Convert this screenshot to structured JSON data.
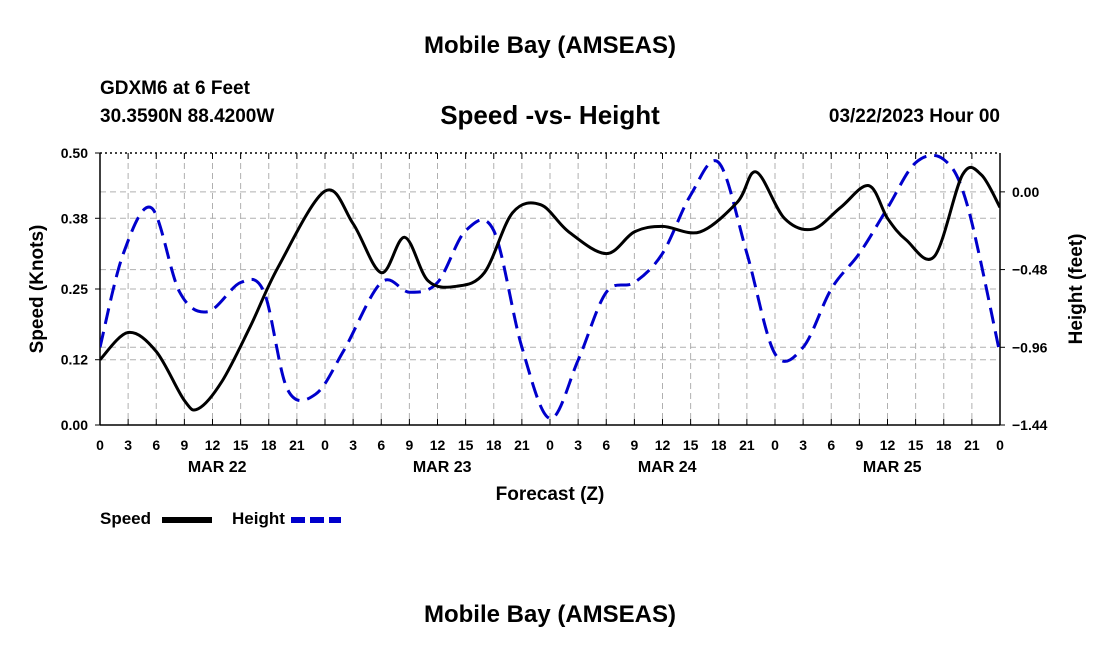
{
  "header": {
    "title": "Mobile Bay (AMSEAS)",
    "station_line": "GDXM6 at 6 Feet",
    "coords_line": "30.3590N  88.4200W",
    "subtitle": "Speed -vs- Height",
    "datetime": "03/22/2023 Hour 00"
  },
  "footer": {
    "title": "Mobile Bay (AMSEAS)"
  },
  "chart_data": {
    "type": "line",
    "title": "Speed -vs- Height",
    "xlabel": "Forecast (Z)",
    "ylabel_left": "Speed (Knots)",
    "ylabel_right": "Height (feet)",
    "xlim_hours": [
      0,
      96
    ],
    "ylim_left": [
      0,
      0.5
    ],
    "ylim_right": [
      -1.44,
      0.24
    ],
    "left_ticks": [
      "0.00",
      "0.12",
      "0.25",
      "0.38",
      "0.50"
    ],
    "right_ticks": [
      "-1.44",
      "-0.96",
      "-0.48",
      "0.00"
    ],
    "x_tick_labels": [
      "0",
      "3",
      "6",
      "9",
      "12",
      "15",
      "18",
      "21",
      "0",
      "3",
      "6",
      "9",
      "12",
      "15",
      "18",
      "21",
      "0",
      "3",
      "6",
      "9",
      "12",
      "15",
      "18",
      "21",
      "0",
      "3",
      "6",
      "9",
      "12",
      "15",
      "18",
      "21",
      "0"
    ],
    "day_labels": [
      "MAR 22",
      "MAR 23",
      "MAR 24",
      "MAR 25"
    ],
    "grid": true,
    "legend_position": "bottom-left",
    "series": [
      {
        "name": "Speed",
        "color": "#000000",
        "dash": "solid",
        "axis": "left",
        "x": [
          0,
          3,
          6,
          9,
          10.5,
          13,
          16,
          19,
          24,
          27,
          30,
          32.5,
          35,
          38,
          41,
          44,
          47,
          50,
          54,
          57,
          60,
          64,
          68,
          70,
          73,
          76,
          79,
          82,
          84,
          86,
          89,
          92,
          94,
          96
        ],
        "y": [
          0.12,
          0.17,
          0.135,
          0.045,
          0.03,
          0.08,
          0.18,
          0.29,
          0.43,
          0.37,
          0.28,
          0.345,
          0.265,
          0.255,
          0.28,
          0.39,
          0.405,
          0.355,
          0.315,
          0.355,
          0.365,
          0.355,
          0.41,
          0.465,
          0.38,
          0.36,
          0.4,
          0.44,
          0.38,
          0.34,
          0.31,
          0.46,
          0.46,
          0.4
        ]
      },
      {
        "name": "Height",
        "color": "#0000CC",
        "dash": "dashed",
        "axis": "right",
        "x": [
          0,
          2.5,
          5.5,
          8.5,
          11.5,
          15,
          17.5,
          20,
          23,
          26,
          30,
          33,
          36,
          39,
          42,
          45,
          48,
          51,
          54,
          57,
          60,
          63,
          66,
          69,
          72,
          75,
          78,
          81,
          84,
          87,
          90,
          92.5,
          96
        ],
        "y": [
          -0.96,
          -0.38,
          -0.1,
          -0.62,
          -0.74,
          -0.56,
          -0.62,
          -1.22,
          -1.25,
          -0.98,
          -0.56,
          -0.62,
          -0.56,
          -0.24,
          -0.24,
          -0.96,
          -1.4,
          -1.04,
          -0.62,
          -0.56,
          -0.38,
          -0.02,
          0.18,
          -0.38,
          -1.0,
          -0.96,
          -0.6,
          -0.38,
          -0.1,
          0.18,
          0.2,
          -0.08,
          -1.0
        ]
      }
    ]
  }
}
